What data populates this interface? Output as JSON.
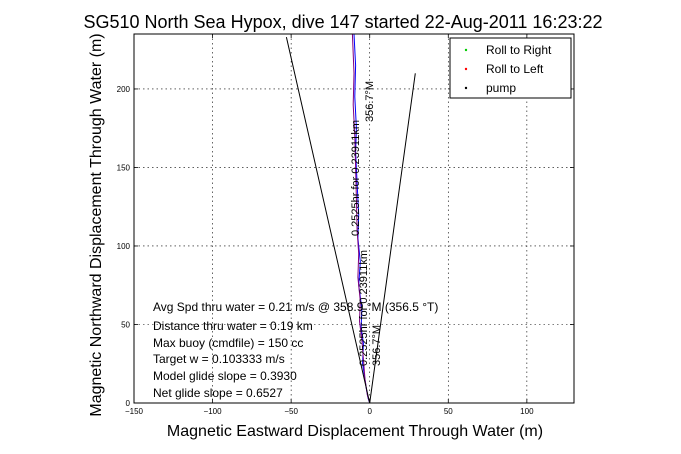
{
  "chart_data": {
    "type": "line",
    "title": "SG510 North Sea Hypox, dive 147 started 22-Aug-2011 16:23:22",
    "xlabel": "Magnetic Eastward Displacement Through Water (m)",
    "ylabel": "Magnetic Northward Displacement Through Water (m)",
    "xlim": [
      -150,
      130
    ],
    "ylim": [
      0,
      235
    ],
    "xticks": [
      -150,
      -100,
      -50,
      0,
      50,
      100
    ],
    "yticks": [
      0,
      50,
      100,
      150,
      200
    ],
    "grid": true,
    "legend_position": "top-right",
    "legend": [
      {
        "label": "Roll to Right",
        "color": "#00cc00"
      },
      {
        "label": "Roll to Left",
        "color": "#ff0000"
      },
      {
        "label": "pump",
        "color": "#000000"
      }
    ],
    "series": [
      {
        "color": "#0000ff",
        "x": [
          -10,
          -9,
          -9.5,
          -8.5,
          -9,
          -8,
          -7,
          -7.5,
          -6,
          -7,
          -5,
          -5.5,
          -4,
          -4.5,
          -3,
          -2,
          -1,
          0
        ],
        "y": [
          235,
          215,
          195,
          175,
          160,
          140,
          120,
          105,
          90,
          75,
          60,
          48,
          38,
          25,
          15,
          8,
          3,
          0
        ]
      },
      {
        "color": "#800080",
        "x": [
          -11,
          -10,
          -10.5,
          -9.5,
          -9,
          -8.5,
          -8,
          -7,
          -7.5,
          -6,
          -6.5,
          -5,
          -4,
          -3,
          -1.5,
          0
        ],
        "y": [
          235,
          210,
          190,
          170,
          150,
          130,
          110,
          95,
          80,
          65,
          52,
          40,
          28,
          15,
          5,
          0
        ]
      },
      {
        "color": "#000000",
        "x": [
          -53,
          0,
          29
        ],
        "y": [
          233,
          0,
          210
        ]
      }
    ],
    "annotations": [
      "Avg Spd thru water = 0.21 m/s @ 358.9 °M (356.5 °T)",
      "Distance thru water = 0.19 km",
      "Max buoy (cmdfile) = 150 cc",
      "Target w = 0.103333 m/s",
      "Model glide slope = 0.3930",
      "Net glide slope = 0.6527"
    ],
    "rotated_labels": [
      "0.2525hr for 0.23911km",
      "356.7°M",
      "0.2525hr for 0.23911km",
      "356.7°M"
    ]
  }
}
